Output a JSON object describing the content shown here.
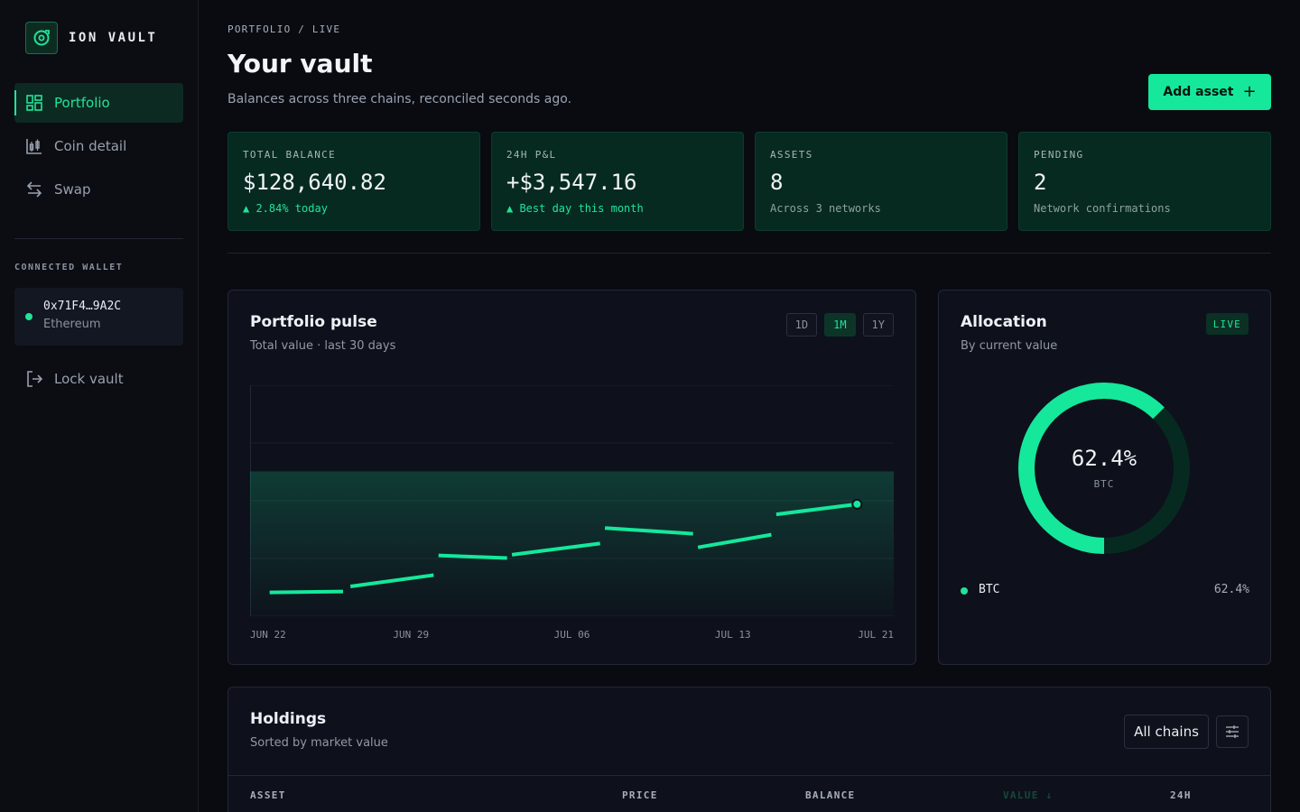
{
  "brand": {
    "name": "ION VAULT",
    "logo_icon": "vault-logo-icon"
  },
  "sidebar": {
    "nav": [
      {
        "label": "Portfolio",
        "icon": "grid-icon",
        "active": true
      },
      {
        "label": "Coin detail",
        "icon": "candlestick-icon",
        "active": false
      },
      {
        "label": "Swap",
        "icon": "swap-arrows-icon",
        "active": false
      }
    ],
    "wallet_caption": "CONNECTED WALLET",
    "wallet": {
      "address": "0x71F4…9A2C",
      "network": "Ethereum",
      "status_color": "#21e39a"
    },
    "lock_label": "Lock vault"
  },
  "header": {
    "breadcrumb": "PORTFOLIO / LIVE",
    "title": "Your vault",
    "subtitle": "Balances across three chains, reconciled seconds ago.",
    "add_button": "Add asset"
  },
  "stats": [
    {
      "label": "TOTAL BALANCE",
      "value": "$128,640.82",
      "note": "▲ 2.84% today",
      "trend": "up"
    },
    {
      "label": "24H P&L",
      "value": "+$3,547.16",
      "note": "▲ Best day this month",
      "trend": "up"
    },
    {
      "label": "ASSETS",
      "value": "8",
      "note": "Across 3 networks",
      "trend": "neutral"
    },
    {
      "label": "PENDING",
      "value": "2",
      "note": "Network confirmations",
      "trend": "neutral"
    }
  ],
  "pulse": {
    "title": "Portfolio pulse",
    "subtitle": "Total value · last 30 days",
    "ranges": [
      {
        "label": "1D",
        "active": false
      },
      {
        "label": "1M",
        "active": true
      },
      {
        "label": "1Y",
        "active": false
      }
    ]
  },
  "chart_data": {
    "type": "line",
    "title": "Portfolio pulse",
    "x_tick_labels": [
      "JUN 22",
      "JUN 29",
      "JUL 06",
      "JUL 13",
      "JUL 21"
    ],
    "series": [
      {
        "points": [
          [
            0.0,
            10.3
          ],
          [
            3.0,
            10.7
          ],
          [
            3.3,
            12.9
          ],
          [
            6.7,
            17.8
          ],
          [
            6.9,
            26.3
          ],
          [
            9.7,
            25.2
          ],
          [
            9.9,
            26.6
          ],
          [
            13.5,
            31.5
          ],
          [
            13.7,
            38.2
          ],
          [
            17.3,
            35.7
          ],
          [
            17.5,
            29.8
          ],
          [
            20.5,
            35.3
          ],
          [
            20.7,
            44.1
          ],
          [
            24.0,
            48.5
          ]
        ]
      }
    ],
    "last_point": [
      24.0,
      48.5
    ],
    "ylim": [
      0,
      100
    ],
    "xlim": [
      -0.8,
      25.5
    ],
    "band": [
      0,
      62.7
    ],
    "line_color": "#15e89b",
    "grid": true
  },
  "allocation": {
    "title": "Allocation",
    "subtitle": "By current value",
    "badge": "LIVE",
    "center_pct": "62.4%",
    "center_label": "BTC",
    "fraction": 0.624,
    "legend": [
      {
        "name": "BTC",
        "value": "62.4%",
        "color": "#21e39a"
      }
    ]
  },
  "holdings": {
    "title": "Holdings",
    "subtitle": "Sorted by market value",
    "filter_label": "All chains",
    "filter_icon": "sliders-icon",
    "columns": [
      "ASSET",
      "PRICE",
      "BALANCE",
      "VALUE ↓",
      "24H"
    ]
  }
}
